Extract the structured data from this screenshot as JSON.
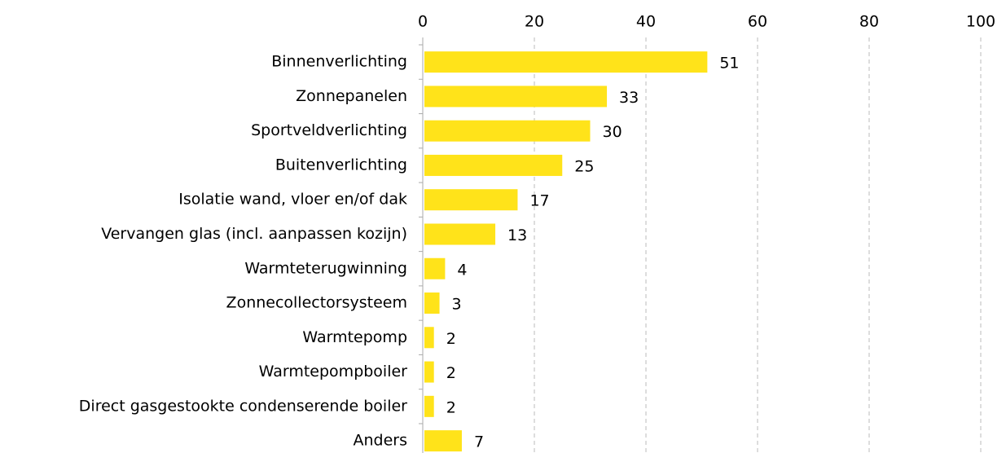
{
  "chart_data": {
    "type": "bar",
    "orientation": "horizontal",
    "categories": [
      "Binnenverlichting",
      "Zonnepanelen",
      "Sportveldverlichting",
      "Buitenverlichting",
      "Isolatie wand, vloer en/of dak",
      "Vervangen glas (incl. aanpassen kozijn)",
      "Warmteterugwinning",
      "Zonnecollectorsysteem",
      "Warmtepomp",
      "Warmtepompboiler",
      "Direct gasgestookte condenserende boiler",
      "Anders"
    ],
    "values": [
      51,
      33,
      30,
      25,
      17,
      13,
      4,
      3,
      2,
      2,
      2,
      7
    ],
    "color": "#ffe31a",
    "xlim": [
      0,
      100
    ],
    "xticks": [
      0,
      20,
      40,
      60,
      80,
      100
    ],
    "grid": true
  }
}
